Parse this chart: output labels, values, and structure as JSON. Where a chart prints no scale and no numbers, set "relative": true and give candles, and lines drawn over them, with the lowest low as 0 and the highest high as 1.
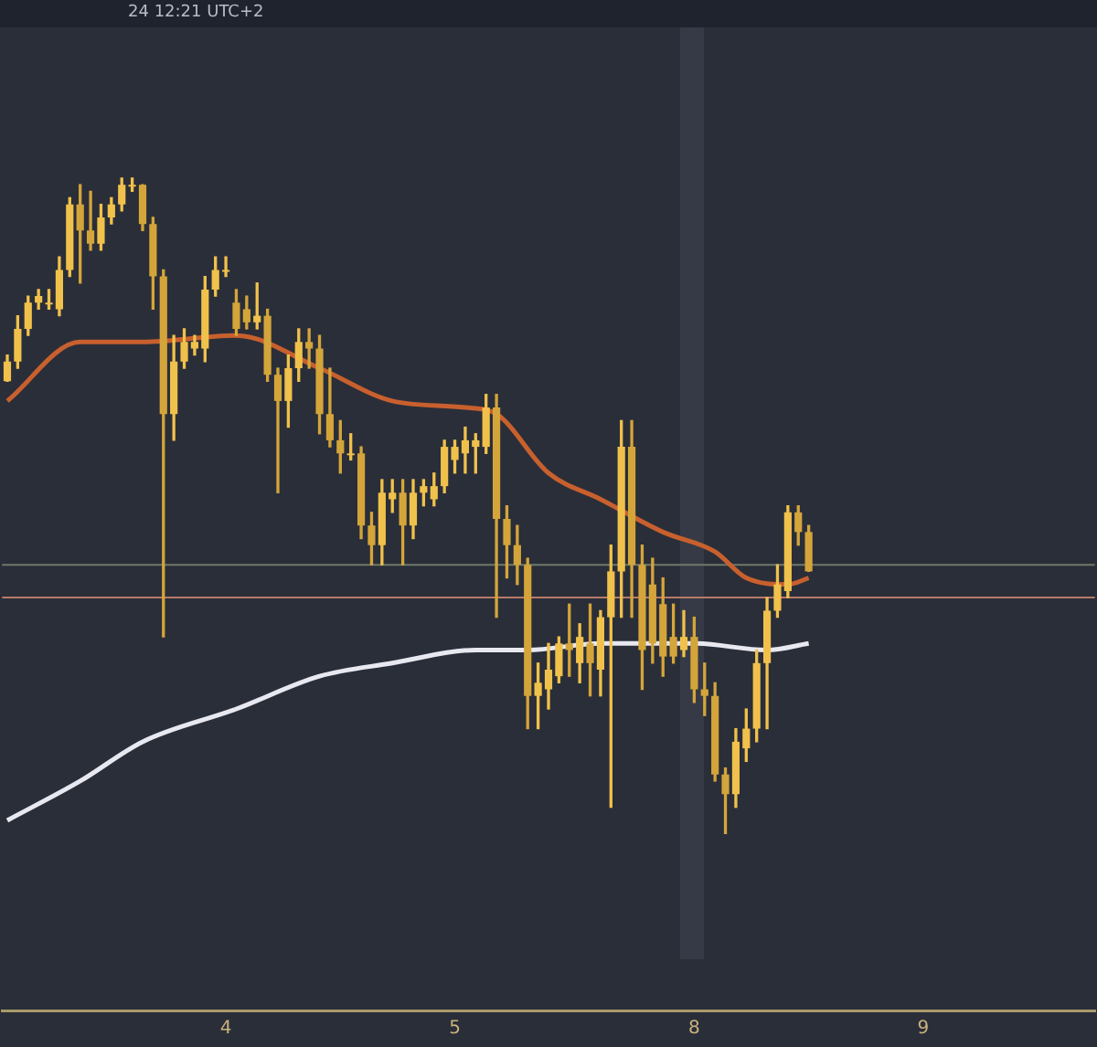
{
  "chart_data": {
    "type": "candlestick",
    "subtitle": "24 12:21 UTC+2",
    "relative": true,
    "tick_labels": "x",
    "colors": [
      "#f0c14b",
      "#f0c14b",
      "#f0c14b",
      "#f0c14b",
      "#f0c14b",
      "#f0c14b",
      "#f0c14b",
      "#d4a53a",
      "#d4a53a",
      "#f0c14b",
      "#f0c14b",
      "#f0c14b",
      "#f0c14b",
      "#d4a53a",
      "#d4a53a",
      "#d4a53a",
      "#f0c14b",
      "#f0c14b",
      "#f0c14b",
      "#f0c14b",
      "#f0c14b",
      "#f0c14b",
      "#d4a53a",
      "#d4a53a",
      "#f0c14b",
      "#d4a53a",
      "#d4a53a",
      "#f0c14b",
      "#f0c14b",
      "#d4a53a",
      "#d4a53a",
      "#d4a53a",
      "#d4a53a",
      "#f0c14b",
      "#d4a53a",
      "#d4a53a",
      "#f0c14b",
      "#f0c14b",
      "#d4a53a",
      "#f0c14b",
      "#f0c14b",
      "#f0c14b",
      "#f0c14b",
      "#f0c14b",
      "#f0c14b",
      "#f0c14b",
      "#f0c14b",
      "#d4a53a",
      "#d4a53a",
      "#d4a53a",
      "#d4a53a",
      "#f0c14b",
      "#f0c14b",
      "#f0c14b",
      "#d4a53a",
      "#f0c14b",
      "#d4a53a",
      "#f0c14b",
      "#f0c14b",
      "#f0c14b",
      "#d4a53a",
      "#d4a53a",
      "#d4a53a",
      "#d4a53a",
      "#d4a53a",
      "#f0c14b",
      "#d4a53a",
      "#d4a53a",
      "#d4a53a",
      "#d4a53a",
      "#f0c14b",
      "#f0c14b",
      "#f0c14b",
      "#f0c14b",
      "#f0c14b",
      "#f0c14b",
      "#d4a53a",
      "#d4a53a",
      null,
      null,
      null,
      null,
      null,
      null,
      null,
      null,
      null,
      null,
      null,
      null,
      null,
      null,
      null,
      null,
      null,
      null,
      null,
      null,
      null,
      null,
      null,
      null,
      null,
      null,
      null
    ],
    "categories": [
      null,
      null,
      null,
      null,
      null,
      null,
      null,
      null,
      null,
      null,
      null,
      null,
      null,
      null,
      null,
      null,
      null,
      null,
      null,
      null,
      null,
      "4",
      null,
      null,
      null,
      null,
      null,
      null,
      null,
      null,
      null,
      null,
      null,
      null,
      null,
      null,
      null,
      null,
      null,
      null,
      null,
      null,
      null,
      "5",
      null,
      null,
      null,
      null,
      null,
      null,
      null,
      null,
      null,
      null,
      null,
      null,
      null,
      null,
      null,
      null,
      null,
      null,
      null,
      null,
      null,
      null,
      "8",
      null,
      null,
      null,
      null,
      null,
      null,
      null,
      null,
      null,
      null,
      null,
      null,
      null,
      null,
      null,
      null,
      null,
      null,
      null,
      null,
      null,
      "9",
      null,
      null,
      null,
      null,
      null,
      null,
      null,
      null,
      null,
      null,
      null,
      null,
      null,
      null,
      null,
      null
    ],
    "ohlc": [
      [
        0.69,
        0.73,
        0.69,
        0.72
      ],
      [
        0.72,
        0.79,
        0.71,
        0.77
      ],
      [
        0.77,
        0.82,
        0.76,
        0.81
      ],
      [
        0.81,
        0.83,
        0.8,
        0.82
      ],
      [
        0.81,
        0.83,
        0.8,
        0.81
      ],
      [
        0.8,
        0.88,
        0.79,
        0.86
      ],
      [
        0.86,
        0.97,
        0.85,
        0.96
      ],
      [
        0.96,
        0.99,
        0.84,
        0.92
      ],
      [
        0.92,
        0.98,
        0.89,
        0.9
      ],
      [
        0.9,
        0.96,
        0.89,
        0.94
      ],
      [
        0.94,
        0.97,
        0.93,
        0.96
      ],
      [
        0.96,
        1,
        0.95,
        0.99
      ],
      [
        0.99,
        1,
        0.98,
        0.99
      ],
      [
        0.99,
        0.99,
        0.92,
        0.93
      ],
      [
        0.93,
        0.94,
        0.8,
        0.85
      ],
      [
        0.85,
        0.86,
        0.3,
        0.64
      ],
      [
        0.64,
        0.76,
        0.6,
        0.72
      ],
      [
        0.72,
        0.77,
        0.71,
        0.75
      ],
      [
        0.74,
        0.76,
        0.73,
        0.75
      ],
      [
        0.74,
        0.85,
        0.72,
        0.83
      ],
      [
        0.83,
        0.88,
        0.82,
        0.86
      ],
      [
        0.86,
        0.88,
        0.85,
        0.86
      ],
      [
        0.81,
        0.83,
        0.76,
        0.77
      ],
      [
        0.8,
        0.82,
        0.77,
        0.78
      ],
      [
        0.78,
        0.84,
        0.77,
        0.79
      ],
      [
        0.79,
        0.8,
        0.69,
        0.7
      ],
      [
        0.7,
        0.71,
        0.52,
        0.66
      ],
      [
        0.66,
        0.73,
        0.62,
        0.71
      ],
      [
        0.71,
        0.77,
        0.69,
        0.75
      ],
      [
        0.75,
        0.77,
        0.71,
        0.74
      ],
      [
        0.74,
        0.76,
        0.61,
        0.64
      ],
      [
        0.64,
        0.71,
        0.59,
        0.6
      ],
      [
        0.6,
        0.63,
        0.55,
        0.58
      ],
      [
        0.58,
        0.61,
        0.57,
        0.58
      ],
      [
        0.58,
        0.59,
        0.45,
        0.47
      ],
      [
        0.47,
        0.49,
        0.41,
        0.44
      ],
      [
        0.44,
        0.54,
        0.41,
        0.52
      ],
      [
        0.51,
        0.54,
        0.49,
        0.52
      ],
      [
        0.52,
        0.54,
        0.41,
        0.47
      ],
      [
        0.47,
        0.54,
        0.45,
        0.52
      ],
      [
        0.52,
        0.54,
        0.5,
        0.53
      ],
      [
        0.51,
        0.55,
        0.5,
        0.53
      ],
      [
        0.53,
        0.6,
        0.52,
        0.59
      ],
      [
        0.57,
        0.6,
        0.55,
        0.59
      ],
      [
        0.58,
        0.62,
        0.55,
        0.6
      ],
      [
        0.59,
        0.61,
        0.55,
        0.6
      ],
      [
        0.59,
        0.67,
        0.58,
        0.65
      ],
      [
        0.65,
        0.67,
        0.33,
        0.48
      ],
      [
        0.48,
        0.5,
        0.39,
        0.44
      ],
      [
        0.44,
        0.47,
        0.38,
        0.41
      ],
      [
        0.41,
        0.42,
        0.16,
        0.21
      ],
      [
        0.21,
        0.26,
        0.16,
        0.23
      ],
      [
        0.22,
        0.29,
        0.19,
        0.25
      ],
      [
        0.24,
        0.3,
        0.23,
        0.29
      ],
      [
        0.29,
        0.35,
        0.24,
        0.28
      ],
      [
        0.26,
        0.32,
        0.23,
        0.3
      ],
      [
        0.29,
        0.35,
        0.21,
        0.26
      ],
      [
        0.25,
        0.34,
        0.21,
        0.33
      ],
      [
        0.33,
        0.44,
        0.04,
        0.4
      ],
      [
        0.4,
        0.63,
        0.33,
        0.59
      ],
      [
        0.59,
        0.63,
        0.33,
        0.41
      ],
      [
        0.41,
        0.44,
        0.22,
        0.28
      ],
      [
        0.38,
        0.42,
        0.26,
        0.29
      ],
      [
        0.35,
        0.39,
        0.24,
        0.27
      ],
      [
        0.3,
        0.35,
        0.26,
        0.27
      ],
      [
        0.28,
        0.34,
        0.27,
        0.3
      ],
      [
        0.3,
        0.33,
        0.2,
        0.22
      ],
      [
        0.22,
        0.26,
        0.18,
        0.21
      ],
      [
        0.21,
        0.23,
        0.08,
        0.09
      ],
      [
        0.09,
        0.1,
        0,
        0.06
      ],
      [
        0.06,
        0.16,
        0.04,
        0.14
      ],
      [
        0.13,
        0.19,
        0.11,
        0.16
      ],
      [
        0.16,
        0.28,
        0.14,
        0.26
      ],
      [
        0.26,
        0.36,
        0.16,
        0.34
      ],
      [
        0.34,
        0.41,
        0.33,
        0.38
      ],
      [
        0.37,
        0.5,
        0.36,
        0.49
      ],
      [
        0.49,
        0.5,
        0.44,
        0.46
      ],
      [
        0.46,
        0.47,
        0.4,
        0.4
      ],
      null,
      null,
      null,
      null,
      null,
      null,
      null,
      null,
      null,
      null,
      null,
      null,
      null,
      null,
      null,
      null,
      null,
      null,
      null,
      null,
      null,
      null,
      null,
      null,
      null,
      null,
      null
    ],
    "series": [
      {
        "type": "line",
        "color": "#c8602e",
        "values": [
          0.66,
          null,
          null,
          null,
          null,
          null,
          null,
          0.75,
          null,
          null,
          null,
          null,
          null,
          0.75,
          null,
          null,
          null,
          null,
          null,
          null,
          null,
          null,
          0.76,
          null,
          null,
          null,
          null,
          null,
          null,
          null,
          0.71,
          null,
          null,
          null,
          null,
          null,
          null,
          0.66,
          null,
          null,
          null,
          null,
          null,
          null,
          0.65,
          null,
          null,
          0.64,
          null,
          null,
          null,
          null,
          0.55,
          null,
          null,
          null,
          null,
          0.51,
          null,
          null,
          null,
          null,
          null,
          0.46,
          null,
          null,
          null,
          null,
          0.43,
          null,
          null,
          0.39,
          null,
          null,
          null,
          0.38,
          null,
          0.39,
          null,
          null,
          null,
          null,
          null,
          null,
          null,
          null,
          null,
          null,
          null,
          null,
          null,
          null,
          null,
          null,
          null,
          null,
          null,
          null,
          null,
          null,
          null,
          null,
          null,
          null,
          null
        ]
      },
      {
        "type": "line",
        "color": "#e8e8f0",
        "values": [
          0.02,
          null,
          null,
          null,
          null,
          null,
          null,
          0.08,
          null,
          null,
          null,
          null,
          null,
          0.14,
          null,
          null,
          null,
          null,
          null,
          null,
          null,
          null,
          0.19,
          null,
          null,
          null,
          null,
          null,
          null,
          null,
          0.24,
          null,
          null,
          null,
          null,
          null,
          null,
          0.26,
          null,
          null,
          null,
          null,
          null,
          null,
          null,
          0.28,
          null,
          null,
          null,
          null,
          0.28,
          null,
          null,
          null,
          null,
          null,
          null,
          0.29,
          null,
          null,
          null,
          null,
          null,
          null,
          null,
          null,
          0.29,
          null,
          null,
          null,
          null,
          null,
          null,
          0.28,
          null,
          null,
          null,
          0.29,
          null,
          null,
          null,
          null,
          null,
          null,
          null,
          null,
          null,
          null,
          null,
          null,
          null,
          null,
          null,
          null,
          null,
          null,
          null,
          null,
          null,
          null,
          null,
          null,
          null,
          null,
          null
        ]
      }
    ],
    "ref_lines": [
      {
        "axis": "y",
        "value": 0.41,
        "color": "#6f7a6a"
      },
      {
        "axis": "y",
        "value": 0.36,
        "color": "#b87a68"
      }
    ]
  }
}
